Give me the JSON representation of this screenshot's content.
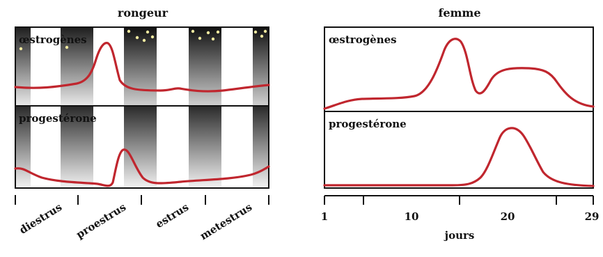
{
  "colors": {
    "curve": "#c0262e",
    "frame": "#111111",
    "band_dark": "#3a3a3a",
    "band_light": "#ffffff",
    "dots": "#f2eaa0"
  },
  "left_panel": {
    "title": "rongeur",
    "top_label": "œstrogènes",
    "bottom_label": "progestérone",
    "phases": [
      "diestrus",
      "proestrus",
      "estrus",
      "metestrus"
    ]
  },
  "right_panel": {
    "title": "femme",
    "top_label": "œstrogènes",
    "bottom_label": "progestérone",
    "x_ticks": [
      "1",
      "10",
      "20",
      "29"
    ],
    "x_label": "jours"
  },
  "chart_data": [
    {
      "type": "line",
      "title": "rongeur",
      "categories": [
        "diestrus",
        "proestrus",
        "estrus",
        "metestrus"
      ],
      "series": [
        {
          "name": "œstrogènes",
          "values": [
            0.1,
            0.9,
            0.05,
            0.15
          ]
        },
        {
          "name": "progestérone",
          "values": [
            0.2,
            0.1,
            0.3,
            0.2
          ]
        }
      ]
    },
    {
      "type": "line",
      "title": "femme",
      "xlabel": "jours",
      "xlim": [
        1,
        29
      ],
      "series": [
        {
          "name": "œstrogènes",
          "x": [
            1,
            3,
            5,
            8,
            11,
            13,
            14,
            15,
            16,
            17,
            19,
            21,
            24,
            25,
            27,
            29
          ],
          "y": [
            0.05,
            0.15,
            0.2,
            0.2,
            0.35,
            0.85,
            0.95,
            0.7,
            0.3,
            0.25,
            0.5,
            0.55,
            0.5,
            0.45,
            0.05,
            0.0
          ]
        },
        {
          "name": "progestérone",
          "x": [
            1,
            10,
            16,
            18,
            19,
            20,
            21,
            22,
            23,
            24,
            26,
            29
          ],
          "y": [
            0.0,
            0.02,
            0.02,
            0.2,
            0.7,
            0.95,
            1.0,
            0.9,
            0.7,
            0.45,
            0.1,
            0.0
          ]
        }
      ]
    }
  ]
}
